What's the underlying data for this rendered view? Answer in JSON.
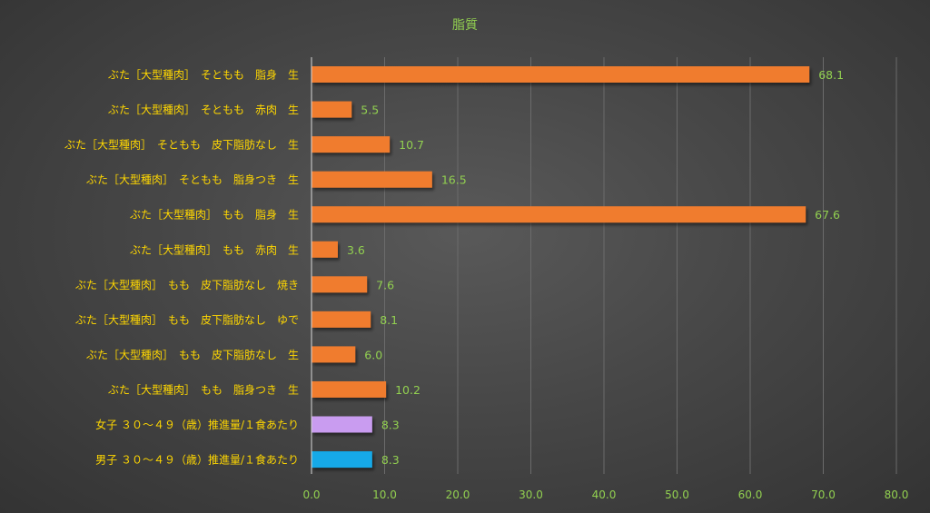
{
  "chart_data": {
    "type": "bar",
    "orientation": "horizontal",
    "title": "脂質",
    "categories": [
      "ぶた［大型種肉］　そともも　脂身　生",
      "ぶた［大型種肉］　そともも　赤肉　生",
      "ぶた［大型種肉］　そともも　皮下脂肪なし　生",
      "ぶた［大型種肉］　そともも　脂身つき　生",
      "ぶた［大型種肉］　もも　脂身　生",
      "ぶた［大型種肉］　もも　赤肉　生",
      "ぶた［大型種肉］　もも　皮下脂肪なし　焼き",
      "ぶた［大型種肉］　もも　皮下脂肪なし　ゆで",
      "ぶた［大型種肉］　もも　皮下脂肪なし　生",
      "ぶた［大型種肉］　もも　脂身つき　生",
      "女子 ３０～４９（歳）推進量/１食あたり",
      "男子 ３０～４９（歳）推進量/１食あたり"
    ],
    "values": [
      68.1,
      5.5,
      10.7,
      16.5,
      67.6,
      3.6,
      7.6,
      8.1,
      6.0,
      10.2,
      8.3,
      8.3
    ],
    "value_labels": [
      "68.1",
      "5.5",
      "10.7",
      "16.5",
      "67.6",
      "3.6",
      "7.6",
      "8.1",
      "6.0",
      "10.2",
      "8.3",
      "8.3"
    ],
    "bar_colors": [
      "#f07b2d",
      "#f07b2d",
      "#f07b2d",
      "#f07b2d",
      "#f07b2d",
      "#f07b2d",
      "#f07b2d",
      "#f07b2d",
      "#f07b2d",
      "#f07b2d",
      "#c99cf0",
      "#12a9e8"
    ],
    "xlim": [
      0,
      80
    ],
    "xticks": [
      "0.0",
      "10.0",
      "20.0",
      "30.0",
      "40.0",
      "50.0",
      "60.0",
      "70.0",
      "80.0"
    ],
    "xtick_values": [
      0,
      10,
      20,
      30,
      40,
      50,
      60,
      70,
      80
    ],
    "grid": true,
    "legend": "none",
    "colors": {
      "title": "#92d050",
      "category_label": "#ffd700",
      "value_label": "#92d050",
      "tick_label": "#92d050",
      "grid": "#6b6b6b",
      "axis": "#d9d9d9"
    }
  }
}
